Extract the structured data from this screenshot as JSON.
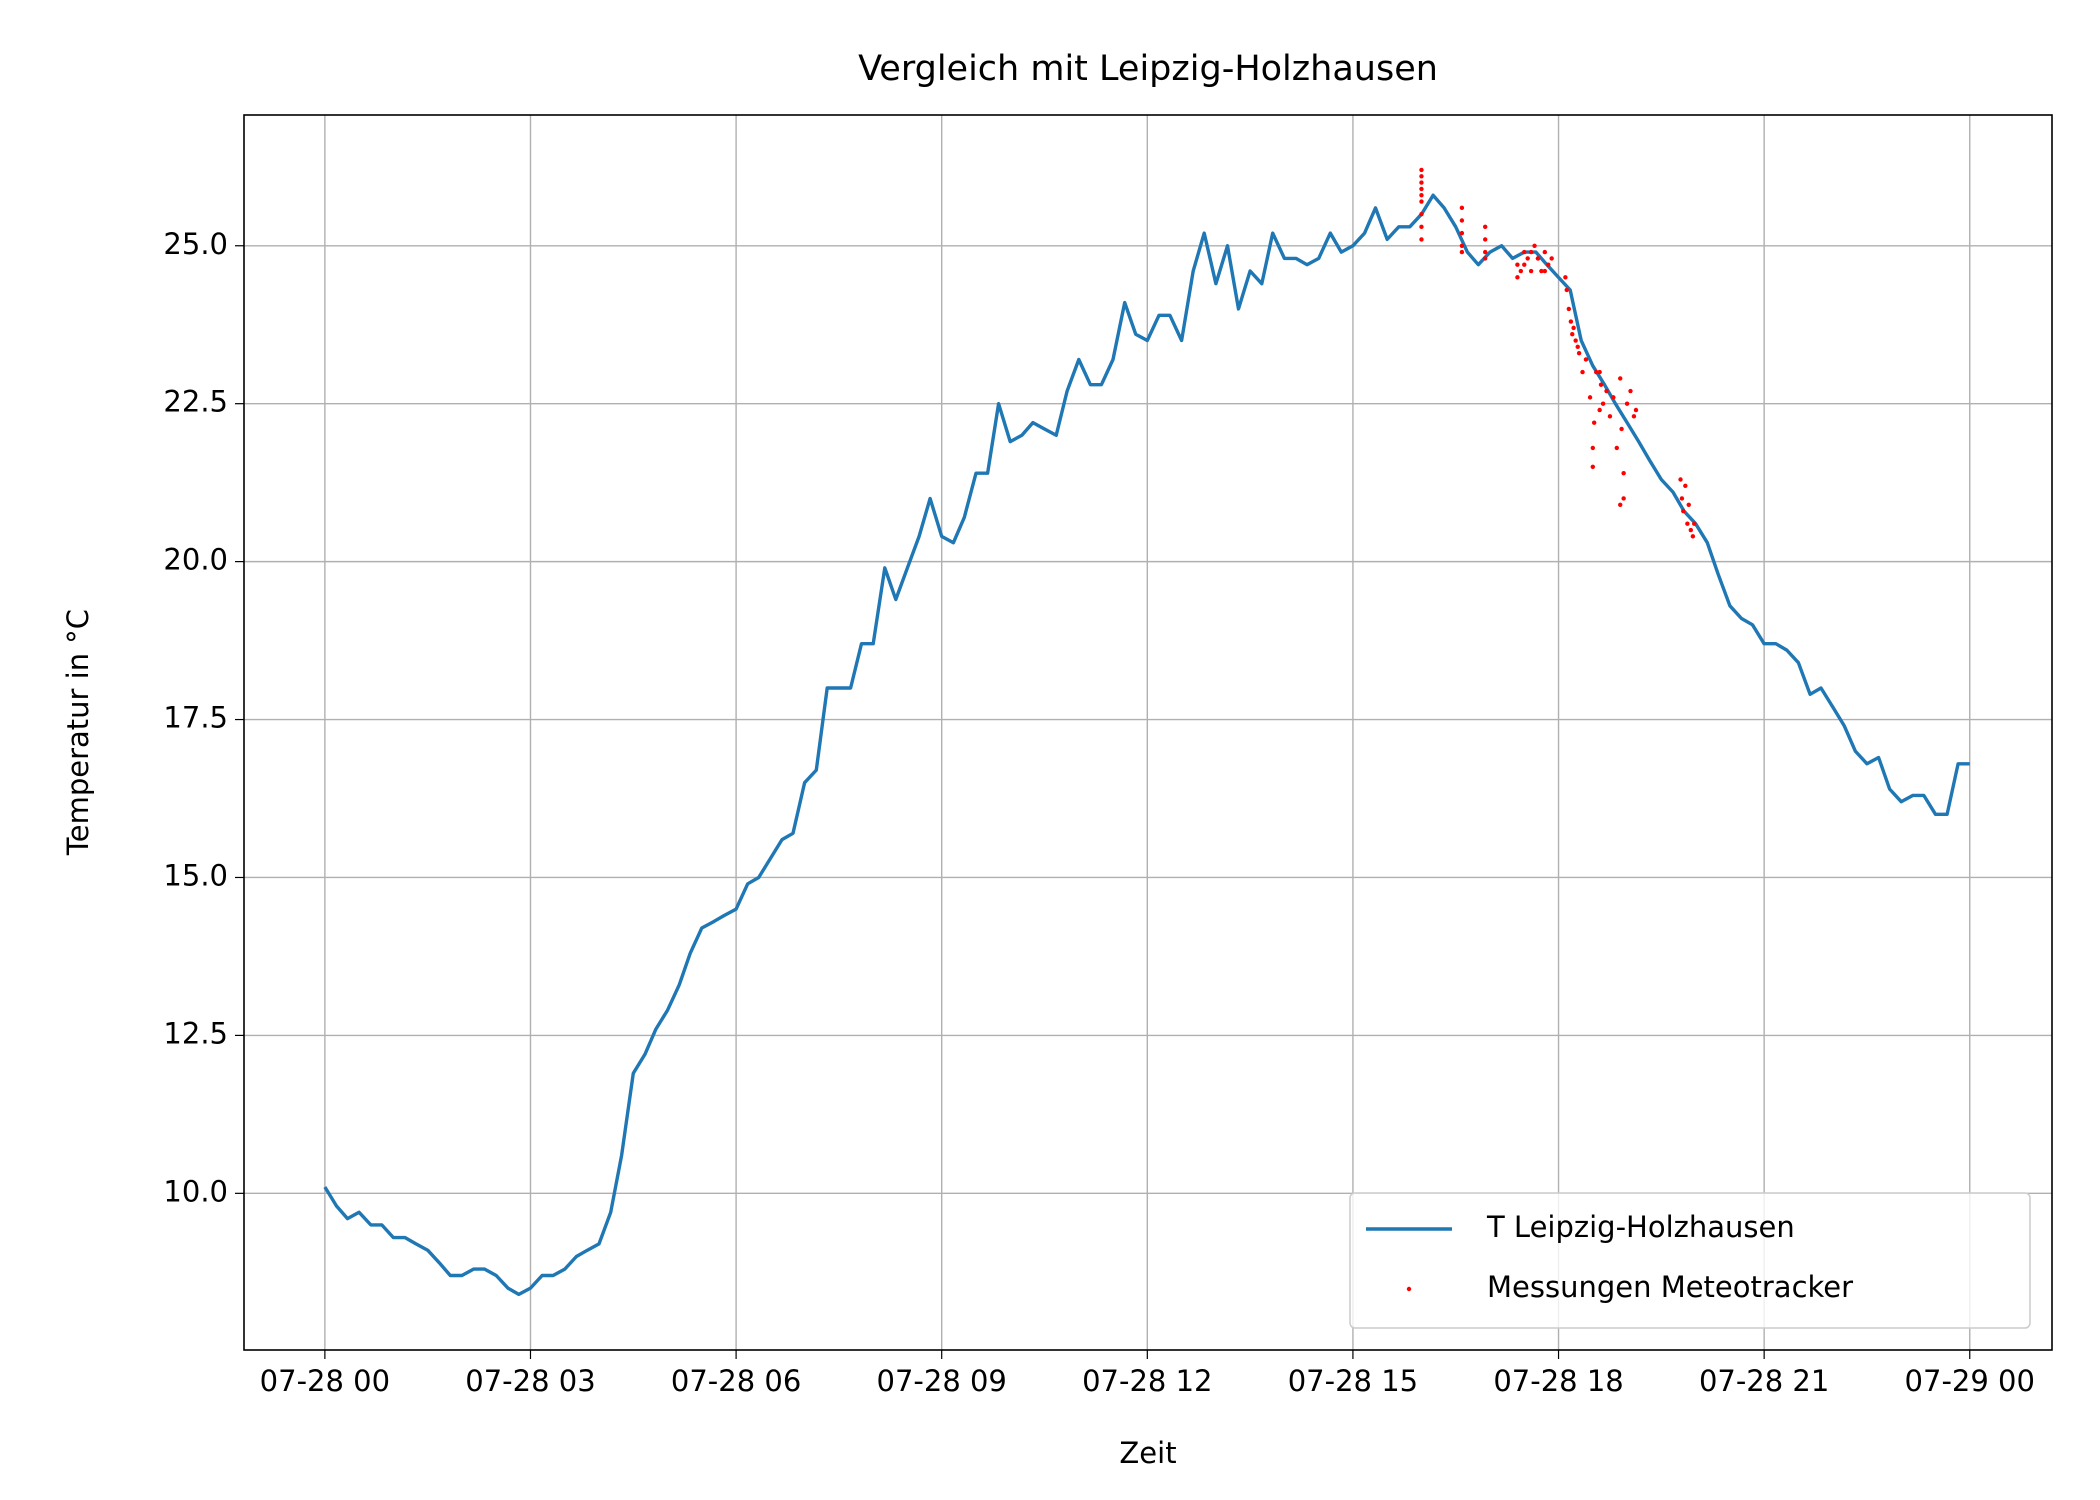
{
  "chart_data": {
    "type": "line",
    "title": "Vergleich mit Leipzig-Holzhausen",
    "x_label": "Zeit",
    "y_label": "Temperatur in °C",
    "xlim": [
      -1.18,
      25.2
    ],
    "ylim": [
      7.52,
      27.07
    ],
    "grid": true,
    "legend": "lower right",
    "xticks": [
      {
        "value": 0,
        "label": "07-28 00"
      },
      {
        "value": 3,
        "label": "07-28 03"
      },
      {
        "value": 6,
        "label": "07-28 06"
      },
      {
        "value": 9,
        "label": "07-28 09"
      },
      {
        "value": 12,
        "label": "07-28 12"
      },
      {
        "value": 15,
        "label": "07-28 15"
      },
      {
        "value": 18,
        "label": "07-28 18"
      },
      {
        "value": 21,
        "label": "07-28 21"
      },
      {
        "value": 24,
        "label": "07-29 00"
      }
    ],
    "yticks": [
      {
        "value": 10,
        "label": "10.0"
      },
      12.5,
      {
        "value": 15,
        "label": "15.0"
      },
      17.5,
      {
        "value": 20,
        "label": "20.0"
      },
      22.5,
      {
        "value": 25,
        "label": "25.0"
      }
    ],
    "series": [
      {
        "name": "T Leipzig-Holzhausen",
        "type": "line",
        "color": "#1f77b4",
        "x": [
          0,
          0.17,
          0.33,
          0.5,
          0.67,
          0.83,
          1,
          1.17,
          1.33,
          1.5,
          1.67,
          1.83,
          2,
          2.17,
          2.33,
          2.5,
          2.67,
          2.83,
          3,
          3.17,
          3.33,
          3.5,
          3.67,
          3.83,
          4,
          4.17,
          4.33,
          4.5,
          4.67,
          4.83,
          5,
          5.17,
          5.33,
          5.5,
          5.67,
          5.83,
          6,
          6.17,
          6.33,
          6.5,
          6.67,
          6.83,
          7,
          7.17,
          7.33,
          7.5,
          7.67,
          7.83,
          8,
          8.17,
          8.33,
          8.5,
          8.67,
          8.83,
          9,
          9.17,
          9.33,
          9.5,
          9.67,
          9.83,
          10,
          10.17,
          10.33,
          10.5,
          10.67,
          10.83,
          11,
          11.17,
          11.33,
          11.5,
          11.67,
          11.83,
          12,
          12.17,
          12.33,
          12.5,
          12.67,
          12.83,
          13,
          13.17,
          13.33,
          13.5,
          13.67,
          13.83,
          14,
          14.17,
          14.33,
          14.5,
          14.67,
          14.83,
          15,
          15.17,
          15.33,
          15.5,
          15.67,
          15.83,
          16,
          16.17,
          16.33,
          16.5,
          16.67,
          16.83,
          17,
          17.17,
          17.33,
          17.5,
          17.67,
          17.83,
          18,
          18.17,
          18.33,
          18.5,
          18.67,
          18.83,
          19,
          19.17,
          19.33,
          19.5,
          19.67,
          19.83,
          20,
          20.17,
          20.33,
          20.5,
          20.67,
          20.83,
          21,
          21.17,
          21.33,
          21.5,
          21.67,
          21.83,
          22,
          22.17,
          22.33,
          22.5,
          22.67,
          22.83,
          23,
          23.17,
          23.33,
          23.5,
          23.67,
          23.83,
          24
        ],
        "values": [
          10.1,
          9.8,
          9.6,
          9.7,
          9.5,
          9.5,
          9.3,
          9.3,
          9.2,
          9.1,
          8.9,
          8.7,
          8.7,
          8.8,
          8.8,
          8.7,
          8.5,
          8.4,
          8.5,
          8.7,
          8.7,
          8.8,
          9.0,
          9.1,
          9.2,
          9.7,
          10.6,
          11.9,
          12.2,
          12.6,
          12.9,
          13.3,
          13.8,
          14.2,
          14.3,
          14.4,
          14.5,
          14.9,
          15.0,
          15.3,
          15.6,
          15.7,
          16.5,
          16.7,
          18.0,
          18.0,
          18.0,
          18.7,
          18.7,
          19.9,
          19.4,
          19.9,
          20.4,
          21.0,
          20.4,
          20.3,
          20.7,
          21.4,
          21.4,
          22.5,
          21.9,
          22.0,
          22.2,
          22.1,
          22.0,
          22.7,
          23.2,
          22.8,
          22.8,
          23.2,
          24.1,
          23.6,
          23.5,
          23.9,
          23.9,
          23.5,
          24.6,
          25.2,
          24.4,
          25.0,
          24.0,
          24.6,
          24.4,
          25.2,
          24.8,
          24.8,
          24.7,
          24.8,
          25.2,
          24.9,
          25.0,
          25.2,
          25.6,
          25.1,
          25.3,
          25.3,
          25.5,
          25.8,
          25.6,
          25.3,
          24.9,
          24.7,
          24.9,
          25.0,
          24.8,
          24.9,
          24.9,
          24.7,
          24.5,
          24.3,
          23.5,
          23.1,
          22.8,
          22.5,
          22.2,
          21.9,
          21.6,
          21.3,
          21.1,
          20.8,
          20.6,
          20.3,
          19.8,
          19.3,
          19.1,
          19.0,
          18.7,
          18.7,
          18.6,
          18.4,
          17.9,
          18.0,
          17.7,
          17.4,
          17.0,
          16.8,
          16.9,
          16.4,
          16.2,
          16.3,
          16.3,
          16.0,
          16.0,
          16.8,
          16.8
        ]
      },
      {
        "name": "Messungen Meteotracker",
        "type": "scatter",
        "color": "#ff0000",
        "x": [
          16,
          16,
          16,
          16,
          16,
          16,
          16,
          16,
          16,
          16.59,
          16.59,
          16.59,
          16.59,
          16.59,
          16.93,
          16.93,
          16.93,
          16.93,
          17.4,
          17.45,
          17.5,
          17.55,
          17.6,
          17.65,
          17.7,
          17.75,
          17.8,
          17.85,
          17.9,
          17.4,
          17.5,
          17.6,
          17.7,
          17.8,
          18.1,
          18.12,
          18.15,
          18.18,
          18.2,
          18.22,
          18.25,
          18.28,
          18.3,
          18.35,
          18.4,
          18.46,
          18.5,
          18.52,
          18.55,
          18.6,
          18.62,
          18.65,
          18.7,
          18.75,
          18.8,
          18.85,
          18.9,
          18.92,
          18.95,
          19,
          19.05,
          19.1,
          19.13,
          18.5,
          18.6,
          18.9,
          18.95,
          19.78,
          19.8,
          19.82,
          19.85,
          19.88,
          19.9,
          19.93,
          19.96,
          19.98
        ],
        "values": [
          26.2,
          26.1,
          26.0,
          25.9,
          25.8,
          25.7,
          25.5,
          25.3,
          25.1,
          25.6,
          25.4,
          25.2,
          25.0,
          24.9,
          25.3,
          25.1,
          24.9,
          24.8,
          24.5,
          24.6,
          24.7,
          24.8,
          24.9,
          25.0,
          24.8,
          24.6,
          24.9,
          24.7,
          24.8,
          24.7,
          24.9,
          24.6,
          24.8,
          24.6,
          24.5,
          24.3,
          24.0,
          23.8,
          23.6,
          23.7,
          23.5,
          23.4,
          23.3,
          23.0,
          23.2,
          22.6,
          21.5,
          22.2,
          23.0,
          22.4,
          22.8,
          22.5,
          22.7,
          22.3,
          22.6,
          21.8,
          22.9,
          22.1,
          21.4,
          22.5,
          22.7,
          22.3,
          22.4,
          21.8,
          23.0,
          20.9,
          21.0,
          21.3,
          21.0,
          20.8,
          21.2,
          20.6,
          20.9,
          20.5,
          20.4,
          20.6
        ]
      }
    ]
  }
}
